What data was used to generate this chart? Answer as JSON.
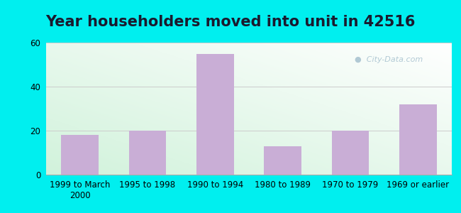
{
  "title": "Year householders moved into unit in 42516",
  "categories": [
    "1999 to March\n2000",
    "1995 to 1998",
    "1990 to 1994",
    "1980 to 1989",
    "1970 to 1979",
    "1969 or earlier"
  ],
  "values": [
    18,
    20,
    55,
    13,
    20,
    32
  ],
  "bar_color": "#c9aed6",
  "background_outer": "#00efef",
  "ylim": [
    0,
    60
  ],
  "yticks": [
    0,
    20,
    40,
    60
  ],
  "watermark": "City-Data.com",
  "title_fontsize": 15,
  "tick_fontsize": 8.5,
  "title_color": "#1a1a2e",
  "gradient_green": [
    0.82,
    0.95,
    0.86
  ],
  "gradient_white": [
    1.0,
    1.0,
    1.0
  ]
}
